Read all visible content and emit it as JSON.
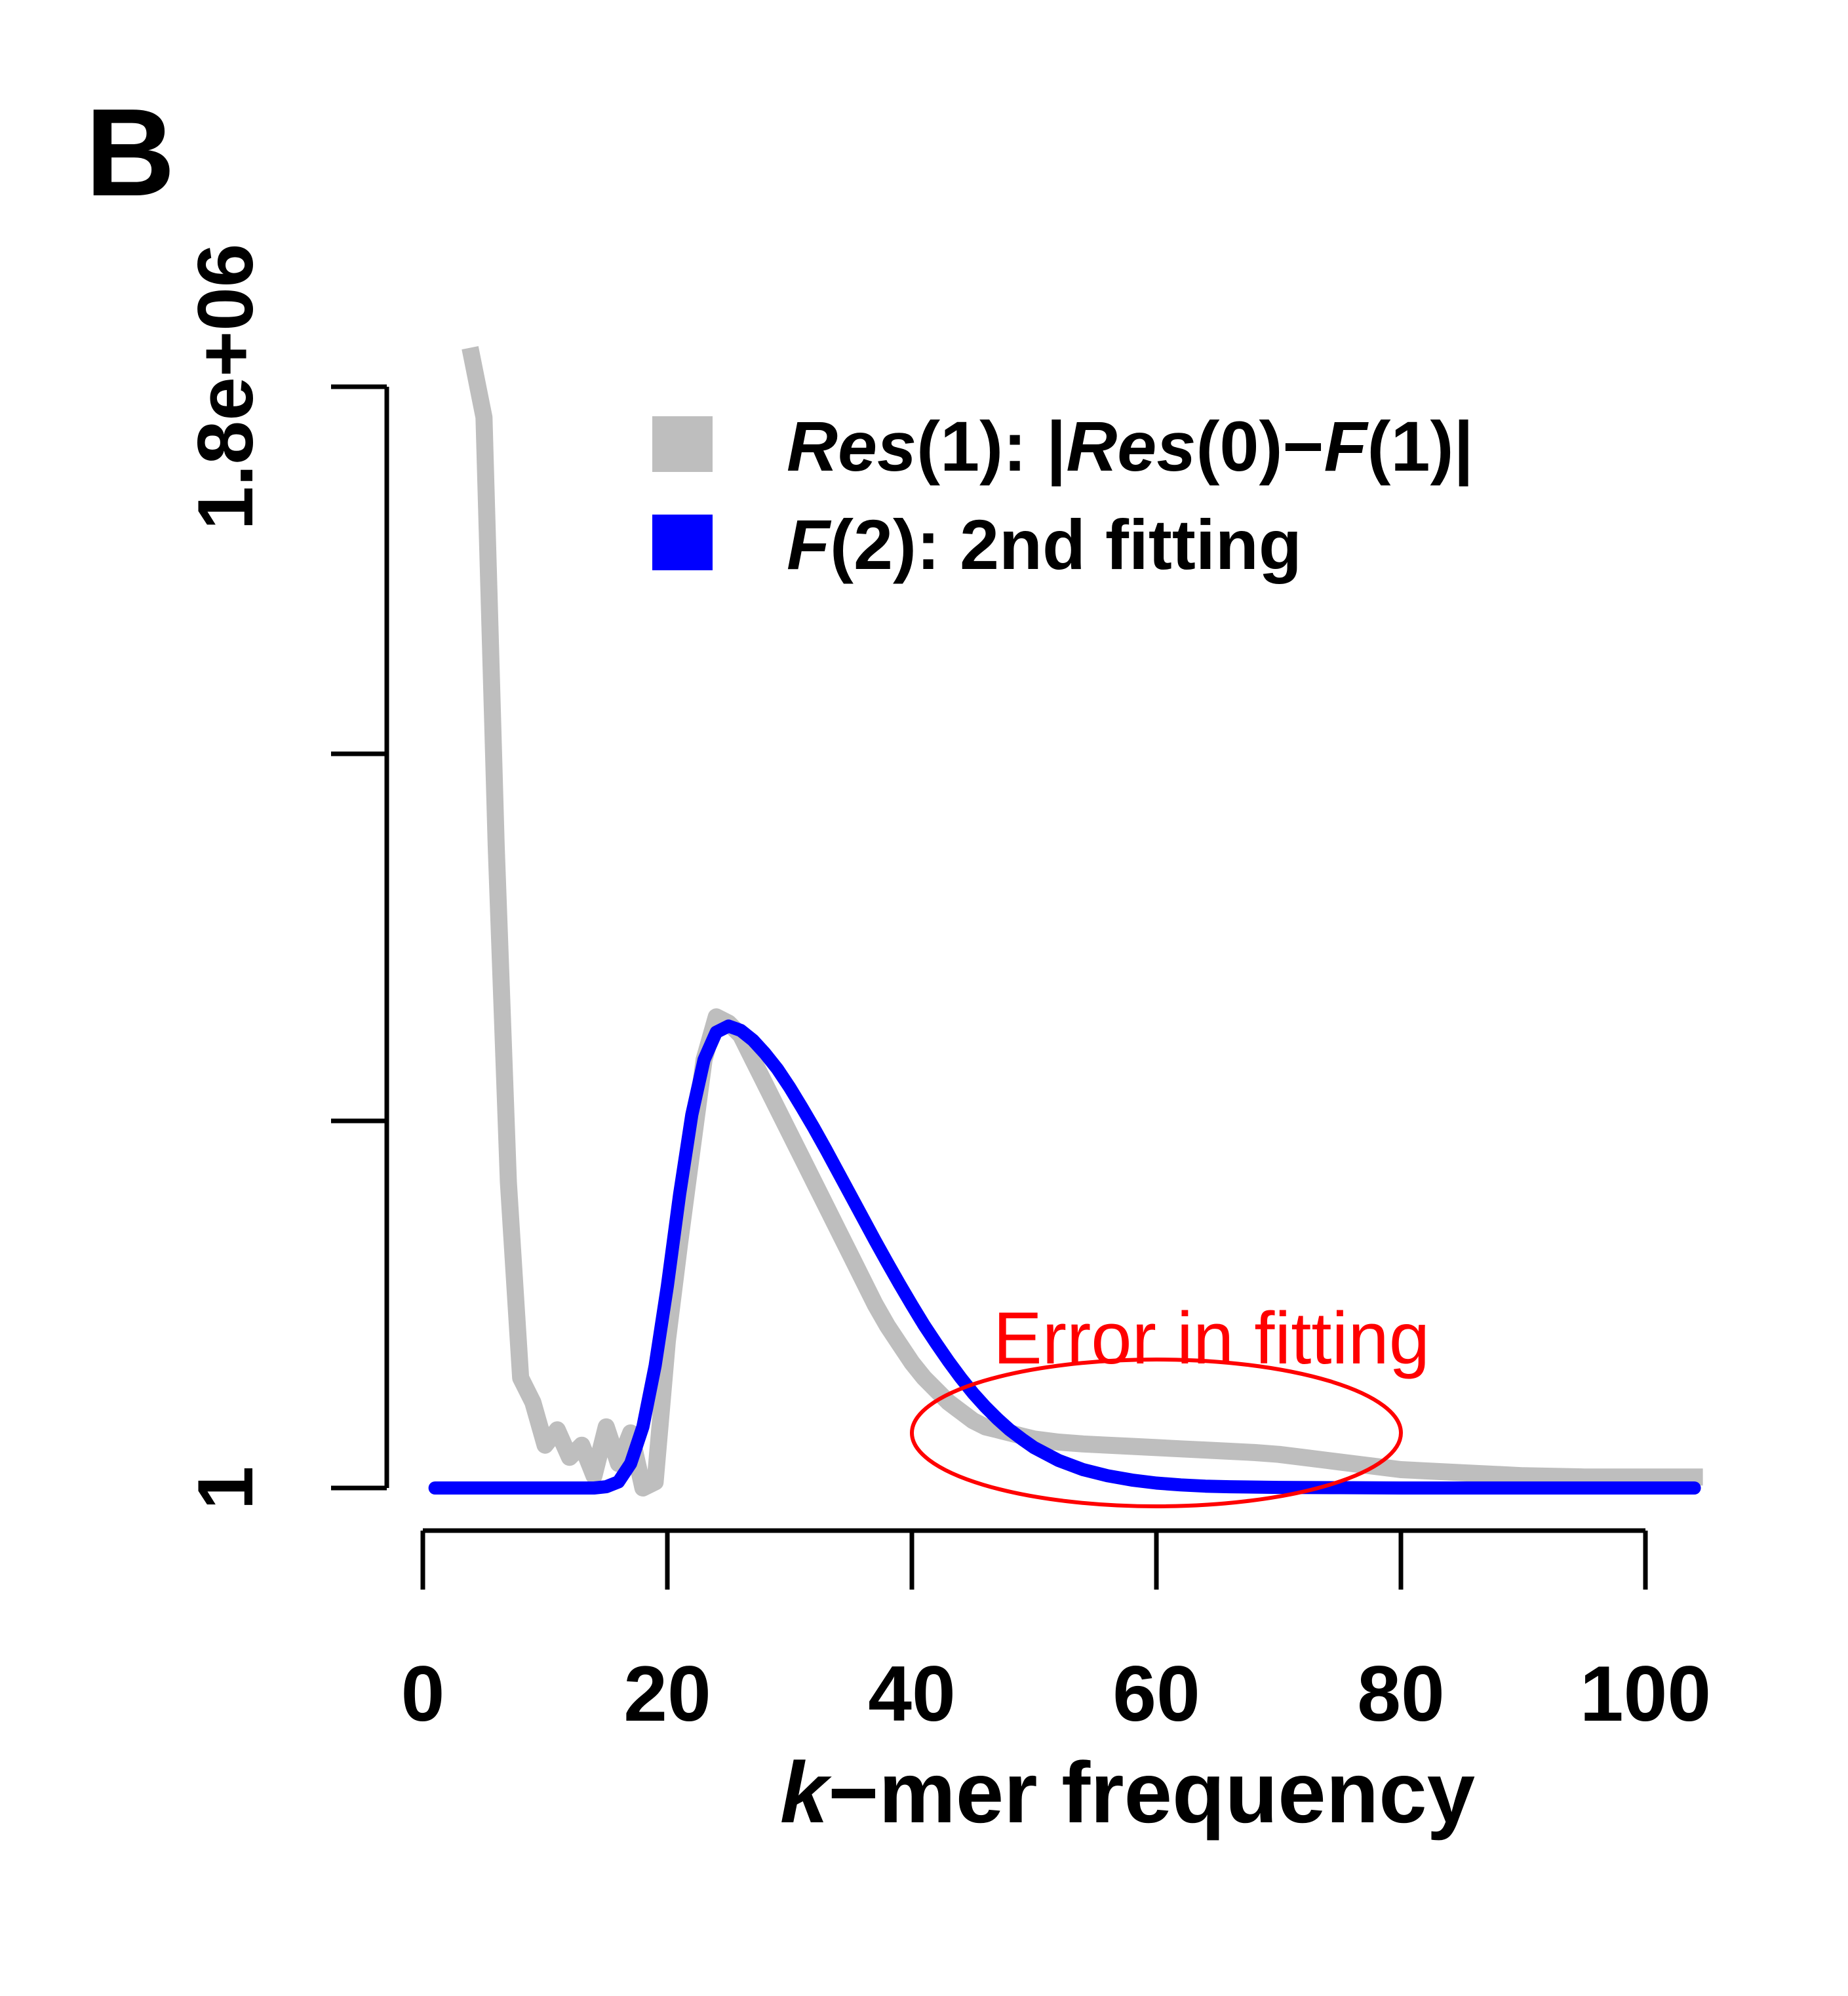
{
  "panel_label": "B",
  "chart_data": {
    "type": "line",
    "xlabel_prefix": "k",
    "xlabel_suffix": "−mer frequency",
    "xlim": [
      0,
      104
    ],
    "ylim": [
      1,
      1800000
    ],
    "x_ticks": [
      0,
      20,
      40,
      60,
      80,
      100
    ],
    "x_tick_labels": [
      "0",
      "20",
      "40",
      "60",
      "80",
      "100"
    ],
    "y_ticks": [
      1,
      600000,
      1200000,
      1800000
    ],
    "y_tick_labels": [
      "1",
      "",
      "",
      "1.8e+06"
    ],
    "legend": {
      "position": "top-right",
      "entries": [
        {
          "key": "res1",
          "color": "#bebebe",
          "segments": [
            {
              "t": "Res",
              "italic": true
            },
            {
              "t": "(1): |",
              "italic": false
            },
            {
              "t": "Res",
              "italic": true
            },
            {
              "t": "(0)−",
              "italic": false
            },
            {
              "t": "F",
              "italic": true
            },
            {
              "t": "(1)|",
              "italic": false
            }
          ]
        },
        {
          "key": "f2",
          "color": "#0000ff",
          "segments": [
            {
              "t": "F",
              "italic": true
            },
            {
              "t": "(2): 2nd fitting",
              "italic": false
            }
          ]
        }
      ]
    },
    "series": [
      {
        "key": "res1",
        "color": "#bebebe",
        "x": [
          4,
          5,
          6,
          7,
          8,
          9,
          10,
          11,
          12,
          13,
          14,
          15,
          16,
          17,
          18,
          19,
          20,
          21,
          22,
          23,
          24,
          25,
          26,
          27,
          28,
          29,
          30,
          31,
          32,
          33,
          34,
          35,
          36,
          37,
          38,
          39,
          40,
          41,
          42,
          43,
          44,
          45,
          46,
          47,
          48,
          49,
          50,
          52,
          54,
          56,
          58,
          60,
          62,
          64,
          66,
          68,
          70,
          72,
          74,
          76,
          78,
          80,
          85,
          90,
          95,
          100,
          104
        ],
        "y": [
          1850000,
          1750000,
          1050000,
          500000,
          180000,
          140000,
          70000,
          95000,
          50000,
          70000,
          20000,
          100000,
          40000,
          90000,
          0,
          10000,
          240000,
          400000,
          550000,
          700000,
          770000,
          760000,
          740000,
          700000,
          660000,
          620000,
          580000,
          540000,
          500000,
          460000,
          420000,
          380000,
          340000,
          300000,
          265000,
          235000,
          205000,
          180000,
          160000,
          140000,
          125000,
          110000,
          100000,
          95000,
          90000,
          85000,
          80000,
          75000,
          72000,
          70000,
          68000,
          66000,
          64000,
          62000,
          60000,
          58000,
          55000,
          50000,
          45000,
          40000,
          35000,
          30000,
          25000,
          20000,
          18000,
          18000,
          18000
        ]
      },
      {
        "key": "f2",
        "color": "#0000ff",
        "x": [
          1,
          5,
          10,
          14,
          15,
          16,
          17,
          18,
          19,
          20,
          21,
          22,
          23,
          24,
          25,
          26,
          27,
          28,
          29,
          30,
          31,
          32,
          33,
          34,
          35,
          36,
          37,
          38,
          39,
          40,
          41,
          42,
          43,
          44,
          45,
          46,
          47,
          48,
          49,
          50,
          52,
          54,
          56,
          58,
          60,
          62,
          64,
          66,
          70,
          75,
          80,
          90,
          100,
          104
        ],
        "y": [
          0,
          0,
          0,
          0,
          2000,
          10000,
          40000,
          100000,
          200000,
          330000,
          480000,
          610000,
          700000,
          745000,
          755000,
          748000,
          732000,
          710000,
          685000,
          655000,
          622000,
          588000,
          552000,
          515000,
          478000,
          441000,
          404000,
          368000,
          333000,
          299000,
          266000,
          236000,
          207000,
          180000,
          155000,
          133000,
          113000,
          95000,
          80000,
          66000,
          45000,
          30000,
          20000,
          13000,
          8000,
          5000,
          3000,
          2000,
          1000,
          500,
          0,
          0,
          0,
          0
        ]
      }
    ],
    "annotation": {
      "text": "Error in fitting",
      "color": "#ff0000",
      "ellipse_center": [
        60,
        90000
      ],
      "ellipse_radii": [
        20,
        120000
      ]
    }
  }
}
